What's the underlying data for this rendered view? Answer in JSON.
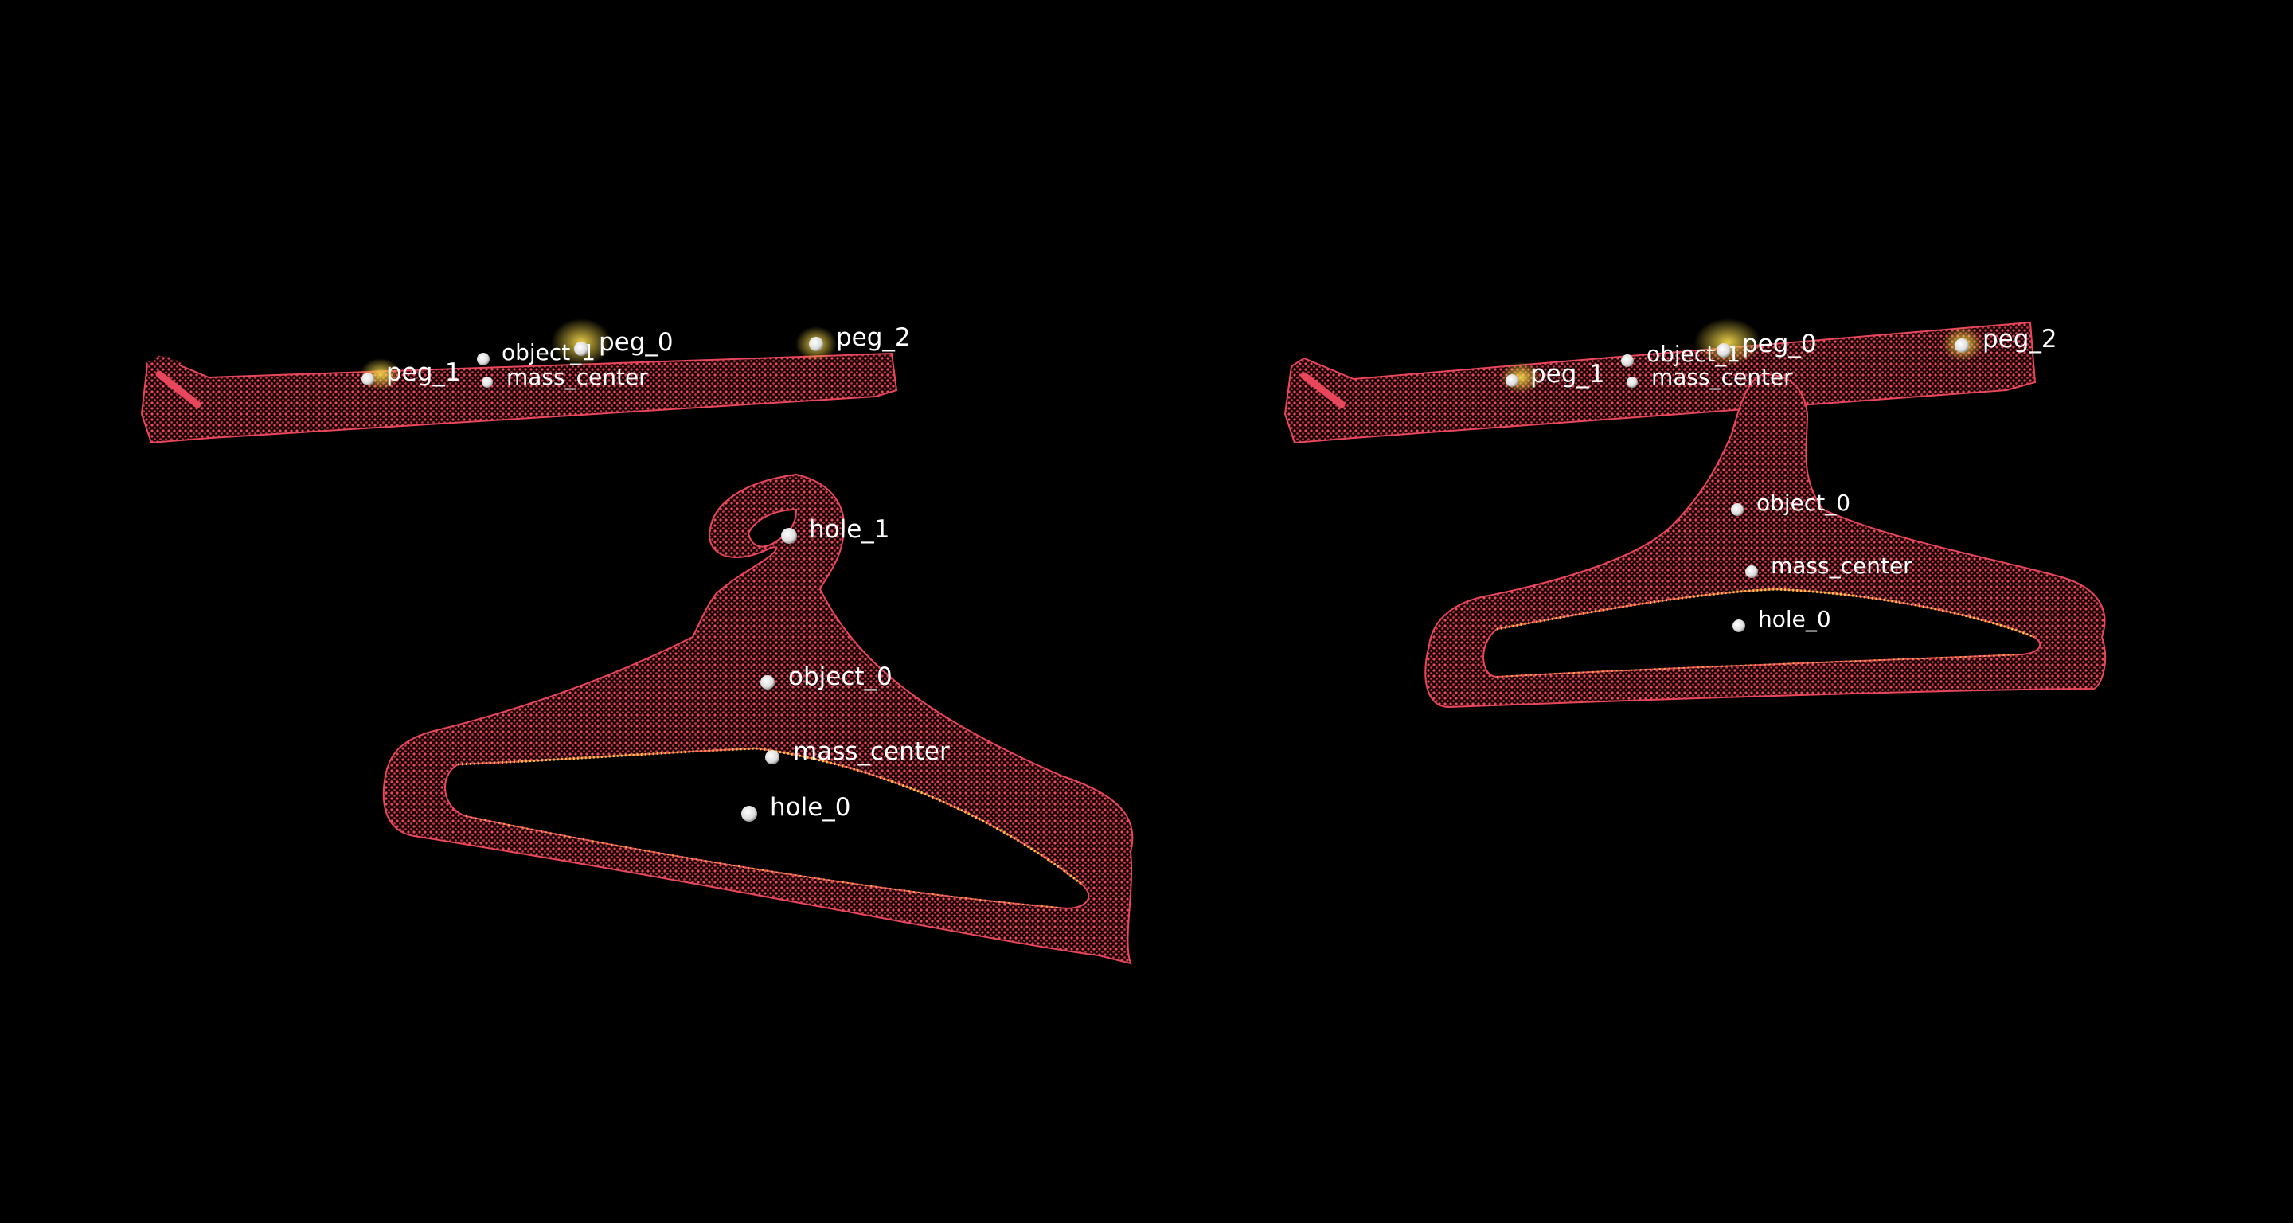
{
  "colors": {
    "background": "#000000",
    "point_cloud": "#e8465a",
    "contact_highlight": "#f2d23a",
    "keypoint": "#ffffff"
  },
  "views": [
    {
      "id": "view-left",
      "rack_keypoints": {
        "peg_0": "peg_0",
        "peg_1": "peg_1",
        "peg_2": "peg_2",
        "object_1": "object_1",
        "mass_center": "mass_center"
      },
      "hanger_keypoints": {
        "hole_1": "hole_1",
        "object_0": "object_0",
        "mass_center": "mass_center",
        "hole_0": "hole_0"
      }
    },
    {
      "id": "view-right",
      "rack_keypoints": {
        "peg_0": "peg_0",
        "peg_1": "peg_1",
        "peg_2": "peg_2",
        "object_1": "object_1",
        "mass_center": "mass_center"
      },
      "hanger_keypoints": {
        "object_0": "object_0",
        "mass_center": "mass_center",
        "hole_0": "hole_0"
      }
    }
  ]
}
